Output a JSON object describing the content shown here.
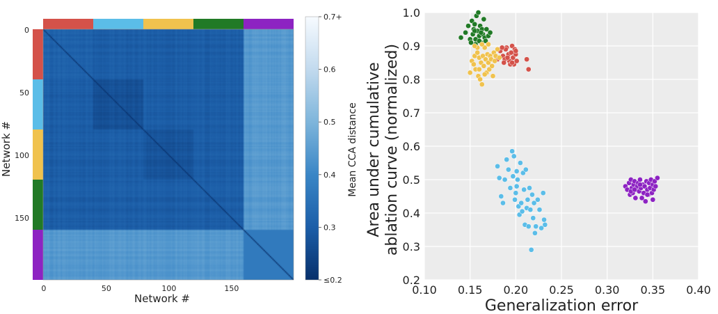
{
  "colors": {
    "group_colors": [
      "#d4524a",
      "#5bbde8",
      "#f0c24e",
      "#217a26",
      "#8d23c2"
    ],
    "heat_low": "#08306b",
    "heat_high": "#f7fbff",
    "scatter_bg": "#ececec",
    "grid": "#ffffff"
  },
  "chart_data": [
    {
      "type": "heatmap",
      "title": "",
      "xlabel": "Network #",
      "ylabel": "Network #",
      "n": 200,
      "x_ticks": [
        "0",
        "50",
        "100",
        "150"
      ],
      "x_tick_values": [
        0,
        50,
        100,
        150
      ],
      "y_ticks": [
        "0",
        "50",
        "100",
        "150"
      ],
      "y_tick_values": [
        0,
        50,
        100,
        150
      ],
      "groups": [
        {
          "start": 0,
          "end": 40,
          "color": "#d4524a"
        },
        {
          "start": 40,
          "end": 80,
          "color": "#5bbde8"
        },
        {
          "start": 80,
          "end": 120,
          "color": "#f0c24e"
        },
        {
          "start": 120,
          "end": 160,
          "color": "#217a26"
        },
        {
          "start": 160,
          "end": 200,
          "color": "#8d23c2"
        }
      ],
      "within_group_distance": [
        0.31,
        0.27,
        0.28,
        0.3,
        0.37
      ],
      "between_group_distance": 0.3,
      "to_purple_distance": 0.44,
      "colorbar": {
        "label": "Mean CCA distance",
        "min": 0.2,
        "max": 0.7,
        "ticks": [
          "≤0.2",
          "0.3",
          "0.4",
          "0.5",
          "0.6",
          "0.7+"
        ],
        "tick_values": [
          0.2,
          0.3,
          0.4,
          0.5,
          0.6,
          0.7
        ]
      }
    },
    {
      "type": "scatter",
      "title": "",
      "xlabel": "Generalization error",
      "ylabel_lines": [
        "Area under cumulative",
        "ablation curve (normalized)"
      ],
      "xlim": [
        0.1,
        0.4
      ],
      "ylim": [
        0.2,
        1.0
      ],
      "x_ticks": [
        "0.10",
        "0.15",
        "0.20",
        "0.25",
        "0.30",
        "0.35",
        "0.40"
      ],
      "x_tick_values": [
        0.1,
        0.15,
        0.2,
        0.25,
        0.3,
        0.35,
        0.4
      ],
      "y_ticks": [
        "0.2",
        "0.3",
        "0.4",
        "0.5",
        "0.6",
        "0.7",
        "0.8",
        "0.9",
        "1.0"
      ],
      "y_tick_values": [
        0.2,
        0.3,
        0.4,
        0.5,
        0.6,
        0.7,
        0.8,
        0.9,
        1.0
      ],
      "grid": true,
      "series": [
        {
          "name": "red",
          "color": "#d4524a",
          "points": [
            [
              0.183,
              0.885
            ],
            [
              0.186,
              0.87
            ],
            [
              0.188,
              0.86
            ],
            [
              0.19,
              0.895
            ],
            [
              0.192,
              0.875
            ],
            [
              0.193,
              0.855
            ],
            [
              0.195,
              0.88
            ],
            [
              0.196,
              0.9
            ],
            [
              0.197,
              0.865
            ],
            [
              0.198,
              0.845
            ],
            [
              0.2,
              0.875
            ],
            [
              0.201,
              0.855
            ],
            [
              0.189,
              0.89
            ],
            [
              0.185,
              0.895
            ],
            [
              0.194,
              0.845
            ],
            [
              0.199,
              0.89
            ],
            [
              0.187,
              0.85
            ],
            [
              0.191,
              0.865
            ],
            [
              0.196,
              0.85
            ],
            [
              0.2,
              0.885
            ],
            [
              0.18,
              0.86
            ],
            [
              0.212,
              0.86
            ],
            [
              0.214,
              0.83
            ]
          ]
        },
        {
          "name": "green",
          "color": "#217a26",
          "points": [
            [
              0.14,
              0.925
            ],
            [
              0.145,
              0.94
            ],
            [
              0.148,
              0.96
            ],
            [
              0.15,
              0.92
            ],
            [
              0.152,
              0.975
            ],
            [
              0.153,
              0.935
            ],
            [
              0.154,
              0.95
            ],
            [
              0.155,
              0.965
            ],
            [
              0.156,
              0.92
            ],
            [
              0.157,
              0.99
            ],
            [
              0.158,
              0.945
            ],
            [
              0.159,
              1.0
            ],
            [
              0.16,
              0.93
            ],
            [
              0.161,
              0.96
            ],
            [
              0.162,
              0.91
            ],
            [
              0.163,
              0.95
            ],
            [
              0.164,
              0.935
            ],
            [
              0.165,
              0.98
            ],
            [
              0.166,
              0.925
            ],
            [
              0.168,
              0.95
            ],
            [
              0.17,
              0.93
            ],
            [
              0.151,
              0.91
            ],
            [
              0.156,
              0.905
            ],
            [
              0.16,
              0.915
            ],
            [
              0.167,
              0.915
            ],
            [
              0.172,
              0.94
            ],
            [
              0.155,
              0.945
            ],
            [
              0.162,
              0.94
            ]
          ]
        },
        {
          "name": "yellow",
          "color": "#f0c24e",
          "points": [
            [
              0.15,
              0.82
            ],
            [
              0.152,
              0.855
            ],
            [
              0.154,
              0.845
            ],
            [
              0.155,
              0.87
            ],
            [
              0.156,
              0.83
            ],
            [
              0.158,
              0.88
            ],
            [
              0.159,
              0.81
            ],
            [
              0.16,
              0.865
            ],
            [
              0.161,
              0.8
            ],
            [
              0.162,
              0.85
            ],
            [
              0.163,
              0.785
            ],
            [
              0.164,
              0.87
            ],
            [
              0.165,
              0.84
            ],
            [
              0.166,
              0.895
            ],
            [
              0.167,
              0.86
            ],
            [
              0.168,
              0.82
            ],
            [
              0.169,
              0.875
            ],
            [
              0.17,
              0.85
            ],
            [
              0.171,
              0.83
            ],
            [
              0.172,
              0.87
            ],
            [
              0.173,
              0.86
            ],
            [
              0.174,
              0.84
            ],
            [
              0.175,
              0.81
            ],
            [
              0.176,
              0.88
            ],
            [
              0.177,
              0.855
            ],
            [
              0.178,
              0.87
            ],
            [
              0.158,
              0.895
            ],
            [
              0.163,
              0.905
            ],
            [
              0.17,
              0.905
            ],
            [
              0.155,
              0.9
            ],
            [
              0.18,
              0.89
            ],
            [
              0.182,
              0.865
            ],
            [
              0.16,
              0.83
            ],
            [
              0.166,
              0.815
            ]
          ]
        },
        {
          "name": "blue",
          "color": "#5bbde8",
          "points": [
            [
              0.18,
              0.54
            ],
            [
              0.182,
              0.505
            ],
            [
              0.184,
              0.45
            ],
            [
              0.186,
              0.43
            ],
            [
              0.188,
              0.5
            ],
            [
              0.19,
              0.56
            ],
            [
              0.192,
              0.53
            ],
            [
              0.194,
              0.475
            ],
            [
              0.196,
              0.585
            ],
            [
              0.197,
              0.51
            ],
            [
              0.198,
              0.57
            ],
            [
              0.199,
              0.44
            ],
            [
              0.2,
              0.46
            ],
            [
              0.201,
              0.48
            ],
            [
              0.202,
              0.5
            ],
            [
              0.203,
              0.42
            ],
            [
              0.204,
              0.395
            ],
            [
              0.205,
              0.55
            ],
            [
              0.206,
              0.43
            ],
            [
              0.207,
              0.405
            ],
            [
              0.208,
              0.52
            ],
            [
              0.209,
              0.47
            ],
            [
              0.21,
              0.365
            ],
            [
              0.211,
              0.53
            ],
            [
              0.212,
              0.415
            ],
            [
              0.213,
              0.44
            ],
            [
              0.214,
              0.36
            ],
            [
              0.215,
              0.475
            ],
            [
              0.216,
              0.41
            ],
            [
              0.217,
              0.29
            ],
            [
              0.218,
              0.455
            ],
            [
              0.219,
              0.385
            ],
            [
              0.22,
              0.43
            ],
            [
              0.221,
              0.34
            ],
            [
              0.222,
              0.36
            ],
            [
              0.224,
              0.44
            ],
            [
              0.226,
              0.41
            ],
            [
              0.228,
              0.355
            ],
            [
              0.23,
              0.46
            ],
            [
              0.231,
              0.38
            ],
            [
              0.232,
              0.365
            ],
            [
              0.201,
              0.525
            ]
          ]
        },
        {
          "name": "purple",
          "color": "#8d23c2",
          "points": [
            [
              0.32,
              0.48
            ],
            [
              0.322,
              0.47
            ],
            [
              0.324,
              0.49
            ],
            [
              0.325,
              0.455
            ],
            [
              0.326,
              0.5
            ],
            [
              0.327,
              0.475
            ],
            [
              0.328,
              0.46
            ],
            [
              0.329,
              0.485
            ],
            [
              0.33,
              0.495
            ],
            [
              0.331,
              0.445
            ],
            [
              0.332,
              0.47
            ],
            [
              0.333,
              0.48
            ],
            [
              0.334,
              0.49
            ],
            [
              0.335,
              0.465
            ],
            [
              0.336,
              0.5
            ],
            [
              0.337,
              0.475
            ],
            [
              0.338,
              0.445
            ],
            [
              0.339,
              0.485
            ],
            [
              0.34,
              0.46
            ],
            [
              0.341,
              0.48
            ],
            [
              0.342,
              0.435
            ],
            [
              0.343,
              0.495
            ],
            [
              0.344,
              0.47
            ],
            [
              0.345,
              0.455
            ],
            [
              0.346,
              0.49
            ],
            [
              0.347,
              0.475
            ],
            [
              0.348,
              0.5
            ],
            [
              0.349,
              0.46
            ],
            [
              0.35,
              0.485
            ],
            [
              0.351,
              0.47
            ],
            [
              0.352,
              0.495
            ],
            [
              0.353,
              0.48
            ],
            [
              0.355,
              0.505
            ],
            [
              0.326,
              0.465
            ],
            [
              0.33,
              0.47
            ],
            [
              0.336,
              0.485
            ],
            [
              0.344,
              0.455
            ],
            [
              0.35,
              0.44
            ]
          ]
        }
      ]
    }
  ]
}
